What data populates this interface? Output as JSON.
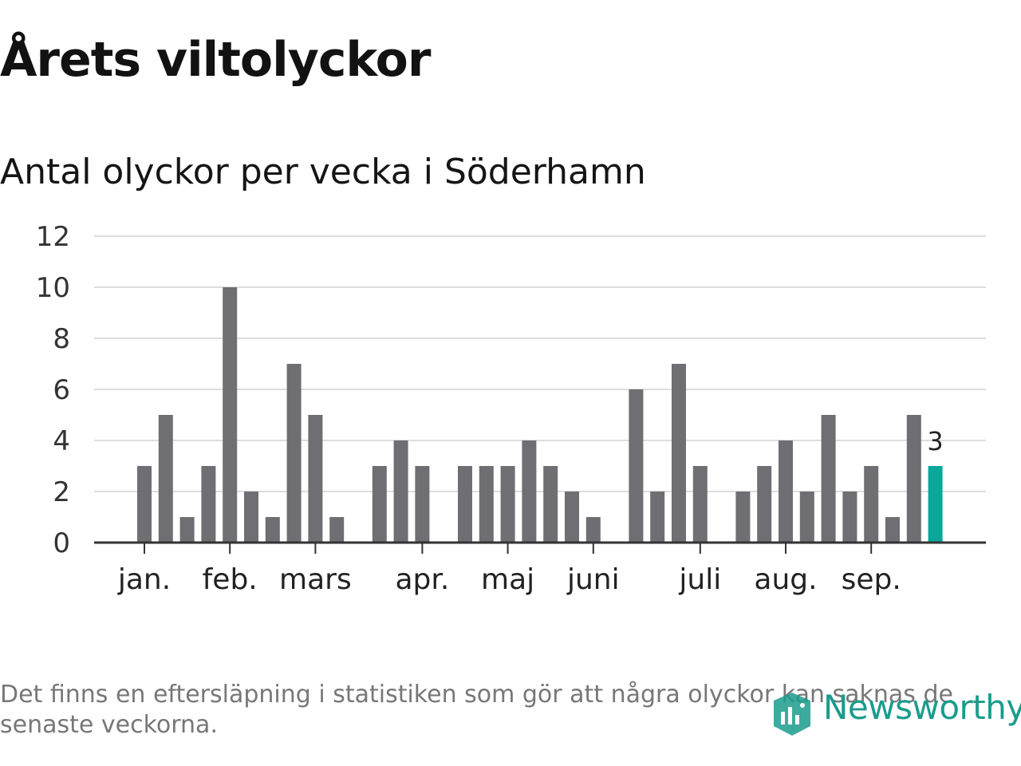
{
  "header": {
    "title": "Årets viltolyckor",
    "subtitle": "Antal olyckor per vecka i Söderhamn"
  },
  "chart_data": {
    "type": "bar",
    "ylim": [
      0,
      12
    ],
    "yticks": [
      0,
      2,
      4,
      6,
      8,
      10,
      12
    ],
    "grid": true,
    "values": [
      3,
      5,
      1,
      3,
      10,
      2,
      1,
      7,
      5,
      1,
      0,
      3,
      4,
      3,
      0,
      3,
      3,
      3,
      4,
      3,
      2,
      1,
      0,
      6,
      2,
      7,
      3,
      0,
      2,
      3,
      4,
      2,
      5,
      2,
      3,
      1,
      5,
      3
    ],
    "month_labels": [
      {
        "label": "jan.",
        "week": 0
      },
      {
        "label": "feb.",
        "week": 4
      },
      {
        "label": "mars",
        "week": 8
      },
      {
        "label": "apr.",
        "week": 13
      },
      {
        "label": "maj",
        "week": 17
      },
      {
        "label": "juni",
        "week": 21
      },
      {
        "label": "juli",
        "week": 26
      },
      {
        "label": "aug.",
        "week": 30
      },
      {
        "label": "sep.",
        "week": 34
      }
    ],
    "highlight_last": {
      "label": "3"
    },
    "colors": {
      "bar": "#6f6e73",
      "highlight": "#0aa79a",
      "grid": "#dddddd",
      "axis": "#333333"
    }
  },
  "footer": {
    "note": "Det finns en eftersläpning i statistiken som gör att några olyckor kan saknas de senaste veckorna.",
    "brand": "Newsworthy"
  }
}
